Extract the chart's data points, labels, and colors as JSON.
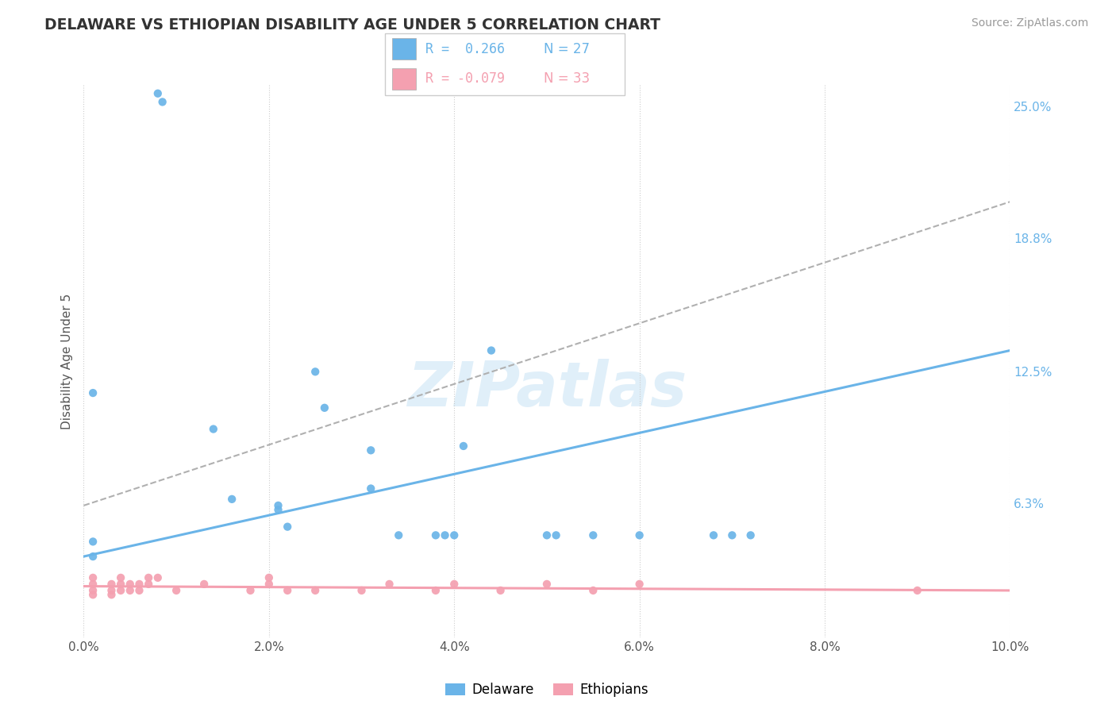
{
  "title": "DELAWARE VS ETHIOPIAN DISABILITY AGE UNDER 5 CORRELATION CHART",
  "source": "Source: ZipAtlas.com",
  "ylabel": "Disability Age Under 5",
  "watermark": "ZIPatlas",
  "xlim": [
    0.0,
    0.1
  ],
  "ylim": [
    0.0,
    0.26
  ],
  "delaware_color": "#6ab4e8",
  "ethiopians_color": "#f4a0b0",
  "delaware_points_x": [
    0.001,
    0.001,
    0.001,
    0.008,
    0.0085,
    0.014,
    0.016,
    0.021,
    0.021,
    0.022,
    0.025,
    0.026,
    0.031,
    0.031,
    0.034,
    0.038,
    0.039,
    0.04,
    0.041,
    0.044,
    0.05,
    0.051,
    0.055,
    0.06,
    0.068,
    0.07,
    0.072
  ],
  "delaware_points_y": [
    0.115,
    0.045,
    0.038,
    0.256,
    0.252,
    0.098,
    0.065,
    0.062,
    0.06,
    0.052,
    0.125,
    0.108,
    0.088,
    0.07,
    0.048,
    0.048,
    0.048,
    0.048,
    0.09,
    0.135,
    0.048,
    0.048,
    0.048,
    0.048,
    0.048,
    0.048,
    0.048
  ],
  "ethiopians_points_x": [
    0.001,
    0.001,
    0.001,
    0.001,
    0.003,
    0.003,
    0.003,
    0.004,
    0.004,
    0.004,
    0.005,
    0.005,
    0.006,
    0.006,
    0.007,
    0.007,
    0.008,
    0.01,
    0.013,
    0.018,
    0.02,
    0.02,
    0.022,
    0.025,
    0.03,
    0.033,
    0.038,
    0.04,
    0.045,
    0.05,
    0.055,
    0.06,
    0.09
  ],
  "ethiopians_points_y": [
    0.028,
    0.025,
    0.022,
    0.02,
    0.025,
    0.022,
    0.02,
    0.028,
    0.025,
    0.022,
    0.025,
    0.022,
    0.025,
    0.022,
    0.028,
    0.025,
    0.028,
    0.022,
    0.025,
    0.022,
    0.025,
    0.028,
    0.022,
    0.022,
    0.022,
    0.025,
    0.022,
    0.025,
    0.022,
    0.025,
    0.022,
    0.025,
    0.022
  ],
  "del_trend_x": [
    0.0,
    0.1
  ],
  "del_trend_y": [
    0.038,
    0.135
  ],
  "eth_trend_x": [
    0.0,
    0.1
  ],
  "eth_trend_y": [
    0.024,
    0.022
  ],
  "dashed_trend_x": [
    0.0,
    0.1
  ],
  "dashed_trend_y": [
    0.062,
    0.205
  ],
  "right_yticks": [
    0.0,
    0.063,
    0.125,
    0.188,
    0.25
  ],
  "right_ytick_labels": [
    "",
    "6.3%",
    "12.5%",
    "18.8%",
    "25.0%"
  ],
  "xtick_vals": [
    0.0,
    0.02,
    0.04,
    0.06,
    0.08,
    0.1
  ],
  "xtick_labels": [
    "0.0%",
    "2.0%",
    "4.0%",
    "6.0%",
    "8.0%",
    "10.0%"
  ],
  "legend_r1": "R =  0.266",
  "legend_n1": "N = 27",
  "legend_r2": "R = -0.079",
  "legend_n2": "N = 33"
}
